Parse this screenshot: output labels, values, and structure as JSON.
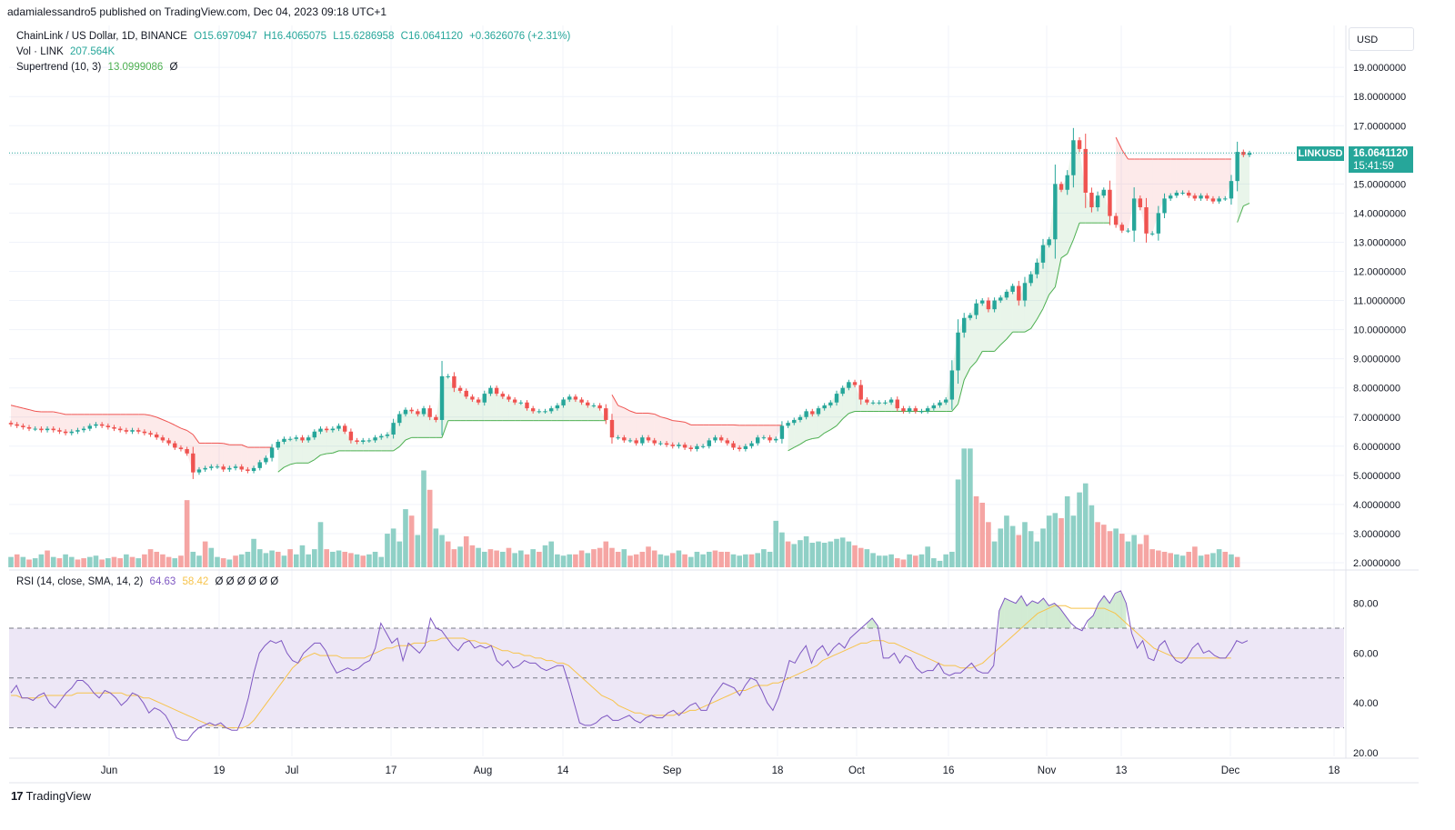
{
  "header": {
    "publisher": "adamialessandro5 published on TradingView.com, Dec 04, 2023 09:18 UTC+1"
  },
  "legend": {
    "symbol": "ChainLink / US Dollar, 1D, BINANCE",
    "open": "O15.6970947",
    "high": "H16.4065075",
    "low": "L15.6286958",
    "close": "C16.0641120",
    "change": "+0.3626076 (+2.31%)",
    "vol_label": "Vol · LINK",
    "vol_value": "207.564K",
    "supertrend_label": "Supertrend (10, 3)",
    "supertrend_value": "13.0999086",
    "supertrend_icon": "Ø",
    "rsi_label": "RSI (14, close, SMA, 14, 2)",
    "rsi_value": "64.63",
    "rsi_sma_value": "58.42",
    "rsi_extra": "Ø Ø Ø Ø Ø Ø"
  },
  "currency": "USD",
  "last_price": {
    "symbol": "LINKUSD",
    "price": "16.0641120",
    "countdown": "15:41:59"
  },
  "footer": {
    "brand": "TradingView"
  },
  "colors": {
    "up": "#26a69a",
    "down": "#ef5350",
    "vol_up": "#8fd0c6",
    "vol_down": "#f5a5a3",
    "supertrend_up": "#4caf50",
    "supertrend_down": "#ef5350",
    "rsi": "#7e57c2",
    "rsi_sma": "#f7c34b",
    "rsi_band": "#ede7f6"
  },
  "chart_data": [
    {
      "type": "candlestick",
      "title": "ChainLink / US Dollar, 1D, BINANCE",
      "price_axis_labels": [
        "19.0000000",
        "18.0000000",
        "17.0000000",
        "16.0000000",
        "15.0000000",
        "14.0000000",
        "13.0000000",
        "12.0000000",
        "11.0000000",
        "10.0000000",
        "9.0000000",
        "8.0000000",
        "7.0000000",
        "6.0000000",
        "5.0000000",
        "4.0000000",
        "3.0000000",
        "2.0000000"
      ],
      "x_tick_labels": [
        "Jun",
        "19",
        "Jul",
        "17",
        "Aug",
        "14",
        "Sep",
        "18",
        "Oct",
        "16",
        "Nov",
        "13",
        "Dec",
        "18"
      ],
      "close_series_approx": [
        6.75,
        6.7,
        6.65,
        6.6,
        6.6,
        6.55,
        6.6,
        6.55,
        6.5,
        6.45,
        6.5,
        6.55,
        6.6,
        6.7,
        6.75,
        6.7,
        6.65,
        6.6,
        6.55,
        6.5,
        6.55,
        6.5,
        6.45,
        6.4,
        6.3,
        6.2,
        6.1,
        5.95,
        5.9,
        5.75,
        5.1,
        5.2,
        5.25,
        5.3,
        5.3,
        5.2,
        5.25,
        5.3,
        5.2,
        5.15,
        5.25,
        5.45,
        5.6,
        5.95,
        6.15,
        6.25,
        6.25,
        6.3,
        6.2,
        6.3,
        6.5,
        6.6,
        6.55,
        6.6,
        6.7,
        6.5,
        6.2,
        6.15,
        6.2,
        6.2,
        6.3,
        6.35,
        6.4,
        6.8,
        7.1,
        7.25,
        7.2,
        7.1,
        7.3,
        7.0,
        6.9,
        8.4,
        8.4,
        8.0,
        7.9,
        7.7,
        7.6,
        7.5,
        7.8,
        8.0,
        7.8,
        7.7,
        7.6,
        7.5,
        7.5,
        7.3,
        7.2,
        7.2,
        7.2,
        7.3,
        7.4,
        7.6,
        7.7,
        7.6,
        7.5,
        7.4,
        7.4,
        7.3,
        6.9,
        6.3,
        6.3,
        6.2,
        6.2,
        6.1,
        6.3,
        6.2,
        6.1,
        6.1,
        6.05,
        6.0,
        6.05,
        5.95,
        5.9,
        6.0,
        6.0,
        6.2,
        6.3,
        6.2,
        6.1,
        5.95,
        5.9,
        6.0,
        6.1,
        6.3,
        6.3,
        6.2,
        6.25,
        6.7,
        6.8,
        6.9,
        7.0,
        7.2,
        7.1,
        7.3,
        7.4,
        7.5,
        7.8,
        8.0,
        8.2,
        8.1,
        7.6,
        7.5,
        7.5,
        7.5,
        7.5,
        7.6,
        7.3,
        7.2,
        7.3,
        7.2,
        7.2,
        7.3,
        7.4,
        7.5,
        7.6,
        8.6,
        9.9,
        10.4,
        10.5,
        10.9,
        11.0,
        10.7,
        11.0,
        11.1,
        11.3,
        11.5,
        11.0,
        11.6,
        11.9,
        12.3,
        12.9,
        13.1,
        15.0,
        14.8,
        15.3,
        16.5,
        16.2,
        14.7,
        14.2,
        14.6,
        14.8,
        13.9,
        13.6,
        13.4,
        13.4,
        14.5,
        14.2,
        13.3,
        13.3,
        14.0,
        14.5,
        14.6,
        14.7,
        14.7,
        14.6,
        14.5,
        14.6,
        14.5,
        14.4,
        14.5,
        14.5,
        15.1,
        16.1,
        16.0,
        16.06
      ]
    },
    {
      "type": "bar",
      "title": "Vol · LINK",
      "values_relative": [
        0.08,
        0.1,
        0.08,
        0.06,
        0.07,
        0.1,
        0.13,
        0.08,
        0.07,
        0.1,
        0.08,
        0.06,
        0.07,
        0.08,
        0.09,
        0.06,
        0.07,
        0.08,
        0.07,
        0.1,
        0.08,
        0.07,
        0.1,
        0.14,
        0.12,
        0.1,
        0.08,
        0.07,
        0.09,
        0.52,
        0.12,
        0.09,
        0.2,
        0.15,
        0.08,
        0.07,
        0.06,
        0.09,
        0.1,
        0.12,
        0.22,
        0.14,
        0.11,
        0.13,
        0.12,
        0.09,
        0.14,
        0.1,
        0.17,
        0.1,
        0.14,
        0.35,
        0.14,
        0.12,
        0.13,
        0.12,
        0.11,
        0.1,
        0.09,
        0.1,
        0.12,
        0.08,
        0.26,
        0.3,
        0.2,
        0.45,
        0.4,
        0.25,
        0.75,
        0.6,
        0.3,
        0.25,
        0.2,
        0.14,
        0.16,
        0.24,
        0.17,
        0.15,
        0.12,
        0.14,
        0.13,
        0.12,
        0.15,
        0.11,
        0.13,
        0.1,
        0.14,
        0.12,
        0.17,
        0.2,
        0.1,
        0.09,
        0.1,
        0.1,
        0.13,
        0.11,
        0.14,
        0.15,
        0.2,
        0.15,
        0.12,
        0.14,
        0.09,
        0.1,
        0.12,
        0.16,
        0.13,
        0.1,
        0.09,
        0.11,
        0.13,
        0.1,
        0.08,
        0.12,
        0.1,
        0.12,
        0.13,
        0.12,
        0.12,
        0.1,
        0.09,
        0.1,
        0.1,
        0.11,
        0.14,
        0.12,
        0.36,
        0.27,
        0.2,
        0.18,
        0.21,
        0.24,
        0.19,
        0.2,
        0.19,
        0.2,
        0.22,
        0.23,
        0.2,
        0.17,
        0.15,
        0.14,
        0.11,
        0.09,
        0.09,
        0.1,
        0.07,
        0.06,
        0.1,
        0.09,
        0.1,
        0.16,
        0.07,
        0.05,
        0.1,
        0.12,
        0.68,
        0.92,
        0.92,
        0.55,
        0.5,
        0.35,
        0.2,
        0.3,
        0.4,
        0.32,
        0.25,
        0.35,
        0.28,
        0.2,
        0.3,
        0.4,
        0.42,
        0.38,
        0.55,
        0.4,
        0.58,
        0.65,
        0.48,
        0.35,
        0.33,
        0.28,
        0.3,
        0.26,
        0.2,
        0.25,
        0.18,
        0.25,
        0.14,
        0.13,
        0.12,
        0.11,
        0.1,
        0.09,
        0.12,
        0.16,
        0.09,
        0.1,
        0.11,
        0.14,
        0.12,
        0.1,
        0.08
      ],
      "values_direction": [
        "u",
        "d",
        "u",
        "d",
        "u",
        "u",
        "d",
        "u",
        "d",
        "u",
        "u",
        "d",
        "d",
        "u",
        "u",
        "d",
        "u",
        "d",
        "d",
        "u",
        "d",
        "u",
        "d",
        "d",
        "d",
        "d",
        "d",
        "u",
        "d",
        "d",
        "u",
        "u",
        "d",
        "u",
        "u",
        "d",
        "u",
        "d",
        "u",
        "u",
        "u",
        "u",
        "u",
        "u",
        "d",
        "u",
        "d",
        "u",
        "u",
        "u",
        "u",
        "u",
        "d",
        "u",
        "u",
        "d",
        "d",
        "u",
        "d",
        "u",
        "u",
        "u",
        "u",
        "u",
        "u",
        "u",
        "d",
        "u",
        "u",
        "d",
        "u",
        "u",
        "d",
        "d",
        "u",
        "d",
        "d",
        "u",
        "u",
        "d",
        "d",
        "u",
        "d",
        "u",
        "u",
        "d",
        "u",
        "d",
        "u",
        "u",
        "u",
        "u",
        "u",
        "d",
        "d",
        "u",
        "d",
        "d",
        "d",
        "d",
        "d",
        "u",
        "d",
        "d",
        "d",
        "d",
        "d",
        "u",
        "u",
        "d",
        "u",
        "d",
        "u",
        "u",
        "u",
        "u",
        "d",
        "d",
        "d",
        "u",
        "u",
        "u",
        "d",
        "u",
        "u",
        "u",
        "u",
        "u",
        "d",
        "u",
        "u",
        "u",
        "u",
        "u",
        "u",
        "u",
        "u",
        "u",
        "u",
        "d",
        "d",
        "u",
        "u",
        "u",
        "u",
        "u",
        "d",
        "d",
        "u",
        "d",
        "u",
        "u",
        "u",
        "u",
        "u",
        "u",
        "u",
        "u",
        "u",
        "d",
        "d",
        "d",
        "u",
        "u",
        "u",
        "u",
        "d",
        "u",
        "u",
        "u",
        "u",
        "u",
        "u",
        "d",
        "u",
        "u",
        "u",
        "u",
        "u",
        "d",
        "d",
        "d",
        "u",
        "d",
        "u",
        "u",
        "d",
        "d",
        "d",
        "d",
        "d",
        "d",
        "u",
        "u",
        "d",
        "d",
        "u",
        "d",
        "u",
        "u",
        "d",
        "u",
        "d",
        "u",
        "u"
      ]
    },
    {
      "type": "line",
      "title": "RSI (14, close, SMA, 14, 2)",
      "y_tick_labels": [
        "80.00",
        "60.00",
        "40.00",
        "20.00"
      ],
      "ylim": [
        17,
        90
      ],
      "bands": {
        "upper": 70,
        "middle": 50,
        "lower": 30
      },
      "series": [
        {
          "name": "RSI",
          "values": [
            44,
            47,
            42,
            42,
            41,
            43,
            44,
            40,
            38,
            41,
            44,
            46,
            49,
            49,
            47,
            44,
            42,
            45,
            44,
            42,
            39,
            41,
            44,
            43,
            40,
            36,
            38,
            37,
            35,
            31,
            26,
            25,
            25,
            28,
            30,
            31,
            32,
            31,
            32,
            30,
            29,
            29,
            34,
            42,
            52,
            60,
            63,
            65,
            64,
            65,
            60,
            57,
            56,
            60,
            62,
            64,
            64,
            61,
            56,
            52,
            53,
            54,
            53,
            54,
            56,
            57,
            62,
            72,
            68,
            64,
            66,
            57,
            64,
            62,
            60,
            63,
            74,
            70,
            69,
            66,
            63,
            61,
            64,
            65,
            62,
            63,
            62,
            63,
            57,
            55,
            57,
            54,
            55,
            57,
            56,
            56,
            54,
            53,
            54,
            55,
            55,
            48,
            40,
            32,
            31,
            31,
            32,
            34,
            35,
            33,
            33,
            34,
            35,
            33,
            32,
            34,
            35,
            34,
            34,
            36,
            37,
            35,
            37,
            39,
            40,
            37,
            37,
            42,
            45,
            48,
            47,
            46,
            43,
            47,
            50,
            49,
            45,
            40,
            37,
            42,
            49,
            57,
            56,
            60,
            63,
            56,
            61,
            63,
            59,
            62,
            64,
            62,
            66,
            68,
            70,
            72,
            74,
            71,
            58,
            58,
            60,
            56,
            59,
            58,
            54,
            52,
            53,
            53,
            56,
            52,
            51,
            52,
            52,
            54,
            56,
            53,
            52,
            52,
            55,
            77,
            82,
            81,
            80,
            83,
            79,
            81,
            80,
            82,
            79,
            80,
            78,
            75,
            72,
            70,
            69,
            73,
            75,
            80,
            83,
            80,
            84,
            85,
            80,
            68,
            62,
            65,
            58,
            57,
            63,
            65,
            60,
            57,
            56,
            58,
            62,
            64,
            60,
            61,
            59,
            58,
            58,
            61,
            65,
            64,
            65
          ]
        },
        {
          "name": "RSI SMA",
          "values": [
            43,
            43,
            42,
            42,
            42,
            42,
            43,
            43,
            43,
            43,
            43,
            43,
            44,
            44,
            44,
            44,
            44,
            44,
            44,
            44,
            44,
            43,
            43,
            43,
            42,
            42,
            41,
            40,
            39,
            38,
            37,
            36,
            35,
            34,
            33,
            32,
            31,
            31,
            31,
            30,
            30,
            30,
            30,
            31,
            33,
            36,
            39,
            42,
            45,
            48,
            51,
            54,
            56,
            58,
            59,
            60,
            59,
            59,
            59,
            59,
            58,
            58,
            58,
            58,
            58,
            59,
            60,
            61,
            62,
            62,
            63,
            63,
            63,
            64,
            64,
            64,
            65,
            65,
            66,
            66,
            66,
            66,
            66,
            65,
            65,
            64,
            64,
            63,
            62,
            61,
            61,
            60,
            60,
            59,
            59,
            58,
            58,
            57,
            57,
            56,
            56,
            55,
            53,
            51,
            49,
            47,
            45,
            43,
            42,
            41,
            39,
            38,
            37,
            36,
            36,
            35,
            35,
            35,
            35,
            35,
            35,
            36,
            36,
            37,
            37,
            38,
            39,
            40,
            41,
            42,
            43,
            44,
            45,
            45,
            46,
            47,
            47,
            47,
            48,
            48,
            49,
            50,
            51,
            52,
            53,
            54,
            55,
            57,
            58,
            59,
            60,
            61,
            62,
            63,
            64,
            64,
            65,
            65,
            65,
            64,
            64,
            63,
            62,
            61,
            60,
            59,
            58,
            57,
            56,
            55,
            55,
            55,
            54,
            54,
            54,
            55,
            56,
            58,
            60,
            62,
            64,
            66,
            68,
            70,
            72,
            74,
            76,
            77,
            78,
            79,
            79,
            79,
            78,
            78,
            78,
            78,
            78,
            78,
            78,
            77,
            76,
            74,
            72,
            70,
            68,
            66,
            64,
            62,
            61,
            60,
            59,
            58,
            58,
            58,
            58,
            58,
            58,
            58,
            58,
            58,
            58,
            58
          ]
        }
      ]
    }
  ]
}
